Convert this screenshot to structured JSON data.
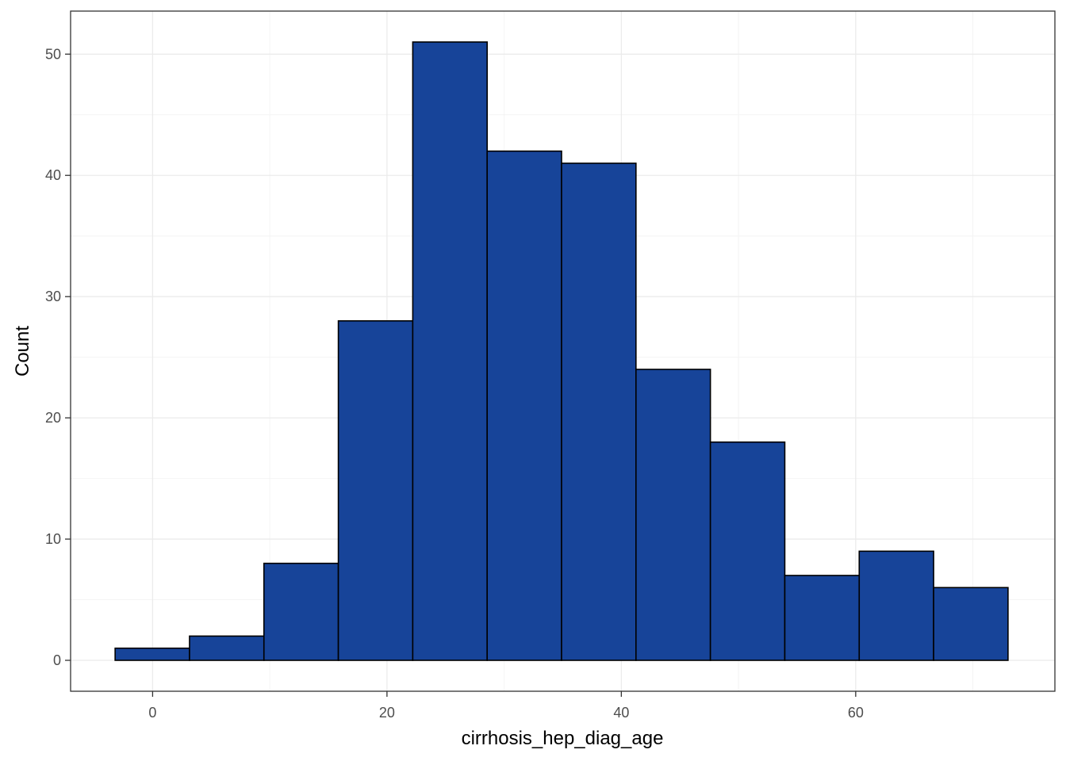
{
  "chart_data": {
    "type": "bar",
    "subtype": "histogram",
    "title": "",
    "xlabel": "cirrhosis_hep_diag_age",
    "ylabel": "Count",
    "bin_width": 6.35,
    "bins": [
      {
        "x0": -3.2,
        "x1": 3.15,
        "count": 1
      },
      {
        "x0": 3.15,
        "x1": 9.5,
        "count": 2
      },
      {
        "x0": 9.5,
        "x1": 15.85,
        "count": 8
      },
      {
        "x0": 15.85,
        "x1": 22.2,
        "count": 28
      },
      {
        "x0": 22.2,
        "x1": 28.55,
        "count": 51
      },
      {
        "x0": 28.55,
        "x1": 34.9,
        "count": 42
      },
      {
        "x0": 34.9,
        "x1": 41.25,
        "count": 41
      },
      {
        "x0": 41.25,
        "x1": 47.6,
        "count": 24
      },
      {
        "x0": 47.6,
        "x1": 53.95,
        "count": 18
      },
      {
        "x0": 53.95,
        "x1": 60.3,
        "count": 7
      },
      {
        "x0": 60.3,
        "x1": 66.65,
        "count": 9
      },
      {
        "x0": 66.65,
        "x1": 73.0,
        "count": 6
      }
    ],
    "xlim": [
      -7.0,
      77.0
    ],
    "ylim": [
      -2.55,
      53.55
    ],
    "x_ticks": [
      0,
      20,
      40,
      60
    ],
    "x_tick_labels": [
      "0",
      "20",
      "40",
      "60"
    ],
    "y_ticks": [
      0,
      10,
      20,
      30,
      40,
      50
    ],
    "y_tick_labels": [
      "0",
      "10",
      "20",
      "30",
      "40",
      "50"
    ],
    "grid": true,
    "legend": "none",
    "colors": {
      "bar_fill": "#174499",
      "bar_stroke": "#000000",
      "grid_major": "#ebebeb",
      "grid_minor": "#f4f4f4",
      "panel_border": "#333333",
      "tick_label": "#4d4d4d"
    }
  }
}
